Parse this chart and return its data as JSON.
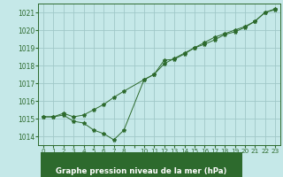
{
  "title": "Graphe pression niveau de la mer (hPa)",
  "bg_color": "#c5e8e8",
  "label_bg": "#2d6a2d",
  "grid_color": "#a0c8c8",
  "line_color": "#2d6a2d",
  "marker_color": "#2d6a2d",
  "xlim": [
    -0.5,
    23.5
  ],
  "ylim": [
    1013.5,
    1021.5
  ],
  "yticks": [
    1014,
    1015,
    1016,
    1017,
    1018,
    1019,
    1020,
    1021
  ],
  "xtick_positions": [
    0,
    1,
    2,
    3,
    4,
    5,
    6,
    7,
    8,
    9,
    10,
    11,
    12,
    13,
    14,
    15,
    16,
    17,
    18,
    19,
    20,
    21,
    22,
    23
  ],
  "xtick_labels": [
    "0",
    "1",
    "2",
    "3",
    "4",
    "5",
    "6",
    "7",
    "8",
    "",
    "10",
    "11",
    "12",
    "13",
    "14",
    "15",
    "16",
    "17",
    "18",
    "19",
    "20",
    "21",
    "22",
    "23"
  ],
  "series1_x": [
    0,
    1,
    2,
    3,
    4,
    5,
    6,
    7,
    8,
    10,
    11,
    12,
    13,
    14,
    15,
    16,
    17,
    18,
    19,
    20,
    21,
    22,
    23
  ],
  "series1_y": [
    1015.1,
    1015.1,
    1015.2,
    1014.85,
    1014.75,
    1014.35,
    1014.15,
    1013.8,
    1014.35,
    1017.2,
    1017.5,
    1018.3,
    1018.35,
    1018.65,
    1019.0,
    1019.2,
    1019.45,
    1019.75,
    1019.9,
    1020.15,
    1020.5,
    1021.0,
    1021.15
  ],
  "series2_x": [
    0,
    1,
    2,
    3,
    4,
    5,
    6,
    7,
    8,
    10,
    11,
    12,
    13,
    14,
    15,
    16,
    17,
    18,
    19,
    20,
    21,
    22,
    23
  ],
  "series2_y": [
    1015.1,
    1015.1,
    1015.3,
    1015.1,
    1015.2,
    1015.5,
    1015.8,
    1016.2,
    1016.55,
    1017.2,
    1017.5,
    1018.1,
    1018.4,
    1018.7,
    1019.0,
    1019.3,
    1019.6,
    1019.8,
    1020.0,
    1020.2,
    1020.5,
    1021.0,
    1021.2
  ]
}
